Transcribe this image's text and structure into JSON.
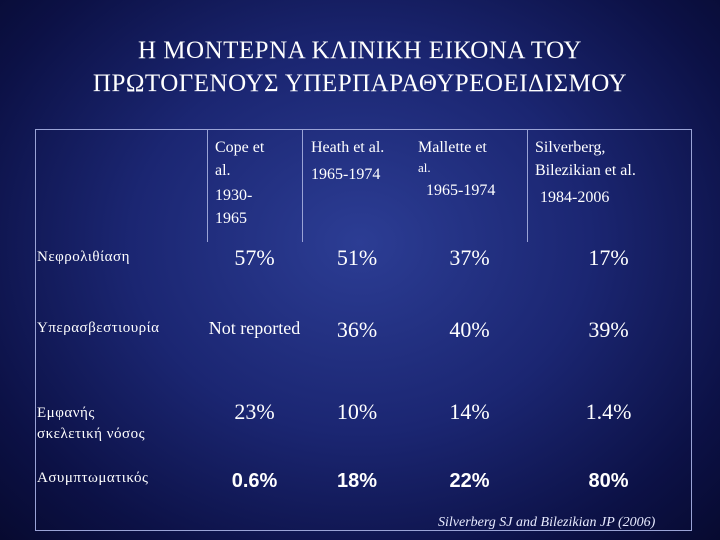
{
  "title": {
    "line1": "Η ΜΟΝΤΕΡΝΑ ΚΛΙΝΙΚΗ ΕΙΚΟΝΑ ΤΟΥ",
    "line2": "ΠΡΩΤΟΓΕΝΟΥΣ ΥΠΕΡΠΑΡΑΘΥΡΕΟΕΙΔΙΣΜΟΥ"
  },
  "headers": {
    "cope": {
      "l1": "Cope et",
      "l2": "al.",
      "l3": "1930-",
      "l4": "1965"
    },
    "heath": {
      "l1": "Heath et al.",
      "l2": "1965-1974"
    },
    "mallette": {
      "l1": "Mallette et",
      "l2": "al.",
      "l3": "1965-1974"
    },
    "silverberg": {
      "l1": "Silverberg,",
      "l2": "Bilezikian et al.",
      "l3": "1984-2006"
    }
  },
  "rows": [
    {
      "label": [
        "Νεφρολιθίαση"
      ],
      "values": [
        "57%",
        "51%",
        "37%",
        "17%"
      ]
    },
    {
      "label": [
        "Υπερασβεστιουρία"
      ],
      "values": [
        "Not reported",
        "36%",
        "40%",
        "39%"
      ]
    },
    {
      "label": [
        "Εμφανής",
        "σκελετική νόσος"
      ],
      "values": [
        "23%",
        "10%",
        "14%",
        "1.4%"
      ]
    },
    {
      "label": [
        "Ασυμπτωματικός"
      ],
      "values": [
        "0.6%",
        "18%",
        "22%",
        "80%"
      ]
    }
  ],
  "citation": "Silverberg SJ and Bilezikian JP (2006)"
}
